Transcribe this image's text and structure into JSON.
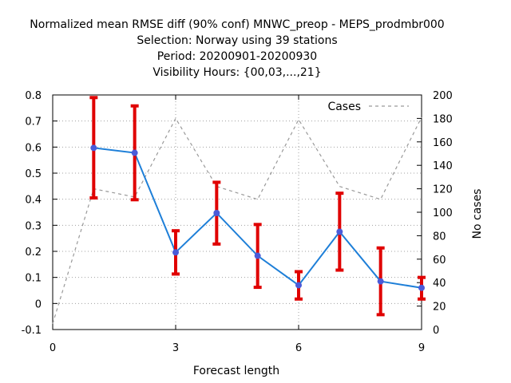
{
  "chart_data": {
    "type": "line",
    "title_lines": [
      "Normalized mean RMSE diff (90% conf) MNWC_preop - MEPS_prodmbr000",
      "Selection: Norway using    39 stations",
      "Period: 20200901-20200930",
      "Visibility   Hours: {00,03,...,21}"
    ],
    "xlabel": "Forecast length",
    "ylabel_right": "No cases",
    "xlim": [
      0,
      9
    ],
    "ylim_left": [
      -0.1,
      0.8
    ],
    "ylim_right": [
      0,
      200
    ],
    "x_ticks": [
      "0",
      "3",
      "6",
      "9"
    ],
    "y_ticks_left": [
      "-0.1",
      "0",
      "0.1",
      "0.2",
      "0.3",
      "0.4",
      "0.5",
      "0.6",
      "0.7",
      "0.8"
    ],
    "y_ticks_right": [
      "0",
      "20",
      "40",
      "60",
      "80",
      "100",
      "120",
      "140",
      "160",
      "180",
      "200"
    ],
    "grid": true,
    "legend_position": "top-right",
    "series": [
      {
        "name": "",
        "axis": "left",
        "color": "#1e7fd8",
        "marker_color": "#4a5bd8",
        "x": [
          1,
          2,
          3,
          4,
          5,
          6,
          7,
          8,
          9
        ],
        "values": [
          0.597,
          0.578,
          0.196,
          0.347,
          0.183,
          0.07,
          0.275,
          0.085,
          0.06
        ],
        "err_low": [
          0.405,
          0.398,
          0.113,
          0.228,
          0.062,
          0.017,
          0.128,
          -0.043,
          0.017
        ],
        "err_high": [
          0.79,
          0.758,
          0.279,
          0.465,
          0.303,
          0.122,
          0.423,
          0.213,
          0.1
        ],
        "error_color": "#e00000"
      },
      {
        "name": "Cases",
        "axis": "right",
        "color": "#999999",
        "dashed": true,
        "x": [
          0,
          1,
          2,
          3,
          4,
          5,
          6,
          7,
          8,
          9
        ],
        "values": [
          5,
          120,
          113,
          180,
          122,
          111,
          179,
          122,
          111,
          181
        ]
      }
    ]
  }
}
